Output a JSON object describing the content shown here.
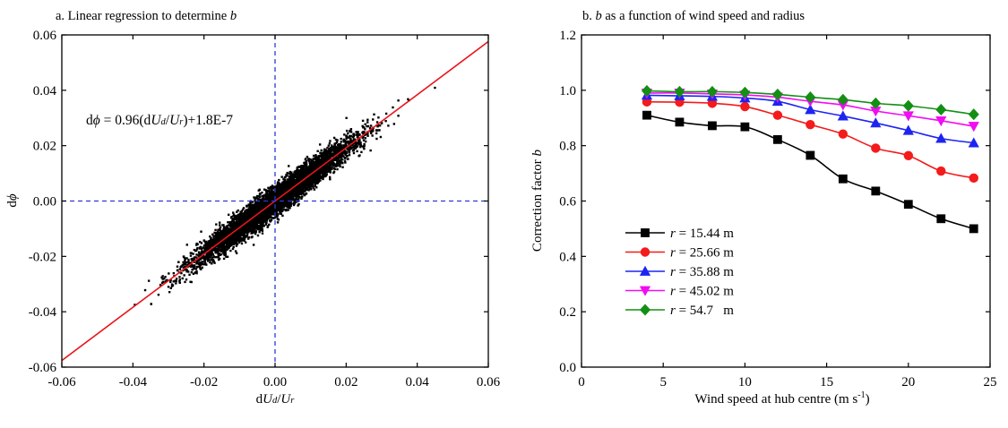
{
  "chart_data": [
    {
      "type": "scatter",
      "title_prefix": "a. Linear regression to determine ",
      "title_italic": "b",
      "xlabel": {
        "prefix": "d",
        "italic1": "U",
        "sub1": "d",
        "slash": "/",
        "italic2": "U",
        "sub2": "r"
      },
      "ylabel": {
        "prefix": "d",
        "italic": "ϕ"
      },
      "xlim": [
        -0.06,
        0.06
      ],
      "ylim": [
        -0.06,
        0.06
      ],
      "xticks": [
        -0.06,
        -0.04,
        -0.02,
        0.0,
        0.02,
        0.04,
        0.06
      ],
      "yticks": [
        -0.06,
        -0.04,
        -0.02,
        0.0,
        0.02,
        0.04,
        0.06
      ],
      "tick_labels": [
        "-0.06",
        "-0.04",
        "-0.02",
        "0.00",
        "0.02",
        "0.04",
        "0.06"
      ],
      "fit": {
        "slope": 0.96,
        "intercept": 1.8e-07,
        "color": "#e8141a"
      },
      "equation": {
        "lhs_d": "d",
        "lhs_phi": "ϕ",
        "middle": " = 0.96(d",
        "u1": "U",
        "s1": "d",
        "slash": "/",
        "u2": "U",
        "s2": "r",
        "tail": ")+1.8E-7"
      },
      "reference_lines": {
        "x": 0,
        "y": 0,
        "color": "#2a3ad8",
        "style": "dashed"
      },
      "scatter": {
        "n_points": 7000,
        "x_range": [
          -0.055,
          0.047
        ],
        "slope": 0.96,
        "residual_sd": 0.0025,
        "color": "#000000"
      }
    },
    {
      "type": "line",
      "title_prefix": "",
      "title_italic": "b",
      "title_suffix": " as a function of wind speed and radius",
      "xlabel_main": "Wind speed at hub centre (m s",
      "xlabel_sup": "-1",
      "xlabel_end": ")",
      "ylabel_main": "Correction factor ",
      "ylabel_italic": "b",
      "xlim": [
        0,
        25
      ],
      "ylim": [
        0,
        1.2
      ],
      "xticks": [
        0,
        5,
        10,
        15,
        20,
        25
      ],
      "xtick_labels": [
        "0",
        "5",
        "10",
        "15",
        "20",
        "25"
      ],
      "yticks": [
        0.0,
        0.2,
        0.4,
        0.6,
        0.8,
        1.0,
        1.2
      ],
      "ytick_labels": [
        "0.0",
        "0.2",
        "0.4",
        "0.6",
        "0.8",
        "1.0",
        "1.2"
      ],
      "x": [
        4,
        6,
        8,
        10,
        12,
        14,
        16,
        18,
        20,
        22,
        24
      ],
      "legend_position": "center-left",
      "series": [
        {
          "r": "r",
          "value": " = 15.44 m",
          "color": "#000000",
          "marker": "square",
          "values": [
            0.91,
            0.885,
            0.872,
            0.868,
            0.822,
            0.765,
            0.68,
            0.636,
            0.588,
            0.536,
            0.5
          ]
        },
        {
          "r": "r",
          "value": " = 25.66 m",
          "color": "#f31b1b",
          "marker": "circle",
          "values": [
            0.958,
            0.957,
            0.953,
            0.941,
            0.91,
            0.876,
            0.842,
            0.791,
            0.764,
            0.708,
            0.683
          ]
        },
        {
          "r": "r",
          "value": " = 35.88 m",
          "color": "#1d24f2",
          "marker": "triangle-up",
          "values": [
            0.982,
            0.98,
            0.978,
            0.972,
            0.96,
            0.93,
            0.907,
            0.882,
            0.855,
            0.826,
            0.81
          ]
        },
        {
          "r": "r",
          "value": " = 45.02 m",
          "color": "#f20cf2",
          "marker": "triangle-down",
          "values": [
            0.99,
            0.99,
            0.987,
            0.983,
            0.975,
            0.96,
            0.947,
            0.925,
            0.908,
            0.89,
            0.87
          ]
        },
        {
          "r": "r",
          "value": " = 54.7   m",
          "color": "#138f13",
          "marker": "diamond",
          "values": [
            0.998,
            0.995,
            0.995,
            0.992,
            0.985,
            0.975,
            0.966,
            0.953,
            0.944,
            0.93,
            0.913
          ]
        }
      ]
    }
  ]
}
